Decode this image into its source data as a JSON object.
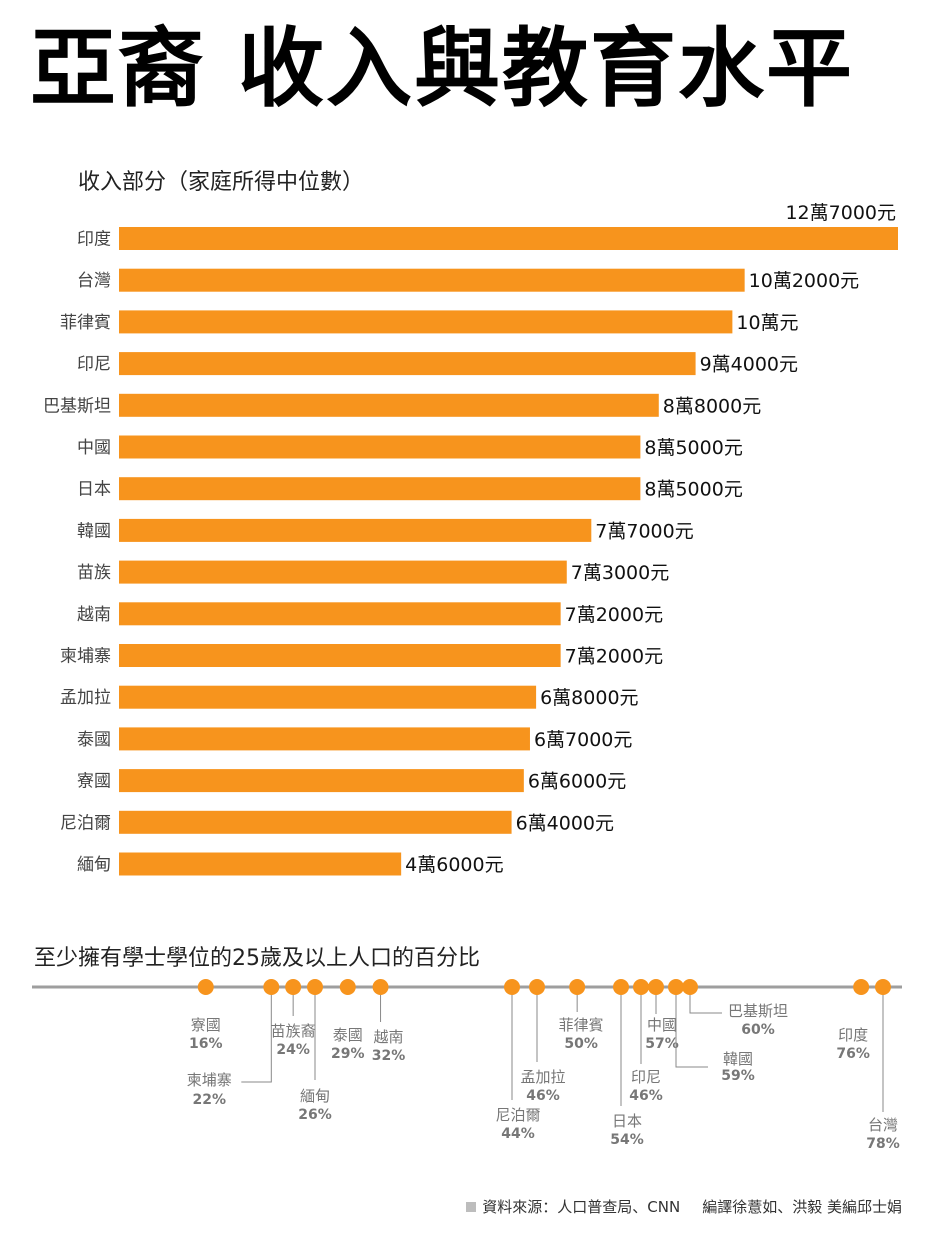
{
  "title": "亞裔 收入與教育水平",
  "colors": {
    "bar": "#f7941d",
    "dot": "#f7941d",
    "axis": "#9e9e9e",
    "leader": "#8a8a8a",
    "dotlabel": "#777777"
  },
  "chart_data": [
    {
      "type": "bar",
      "orientation": "horizontal",
      "title": "收入部分（家庭所得中位數）",
      "unit": "元",
      "categories": [
        "印度",
        "台灣",
        "菲律賓",
        "印尼",
        "巴基斯坦",
        "中國",
        "日本",
        "韓國",
        "苗族",
        "越南",
        "柬埔寨",
        "孟加拉",
        "泰國",
        "寮國",
        "尼泊爾",
        "緬甸"
      ],
      "values": [
        127000,
        102000,
        100000,
        94000,
        88000,
        85000,
        85000,
        77000,
        73000,
        72000,
        72000,
        68000,
        67000,
        66000,
        64000,
        46000
      ],
      "value_labels": [
        "12萬7000元",
        "10萬2000元",
        "10萬元",
        "9萬4000元",
        "8萬8000元",
        "8萬5000元",
        "8萬5000元",
        "7萬7000元",
        "7萬3000元",
        "7萬2000元",
        "7萬2000元",
        "6萬8000元",
        "6萬7000元",
        "6萬6000元",
        "6萬4000元",
        "4萬6000元"
      ],
      "xlim": [
        0,
        127000
      ]
    },
    {
      "type": "scatter",
      "subtype": "dot-strip",
      "title": "至少擁有學士學位的25歲及以上人口的百分比",
      "unit": "%",
      "xlim": [
        0,
        78
      ],
      "points": [
        {
          "name": "寮國",
          "value": 16
        },
        {
          "name": "柬埔寨",
          "value": 22
        },
        {
          "name": "苗族",
          "value": 24
        },
        {
          "name": "緬甸",
          "value": 26
        },
        {
          "name": "泰國",
          "value": 29
        },
        {
          "name": "越南",
          "value": 32
        },
        {
          "name": "尼泊爾",
          "value": 44
        },
        {
          "name": "孟加拉",
          "value": 46
        },
        {
          "name": "菲律賓",
          "value": 50
        },
        {
          "name": "日本",
          "value": 54
        },
        {
          "name": "印尼",
          "value": 46
        },
        {
          "name": "中國",
          "value": 57
        },
        {
          "name": "韓國",
          "value": 59
        },
        {
          "name": "巴基斯坦",
          "value": 60
        },
        {
          "name": "印度",
          "value": 76
        },
        {
          "name": "台灣",
          "value": 78
        }
      ],
      "extra_labels": [
        "苗族裔",
        "24%"
      ]
    }
  ],
  "footer": {
    "source": "資料來源：人口普查局、CNN",
    "credit": "編譯徐薏如、洪毅 美編邱士娟"
  }
}
